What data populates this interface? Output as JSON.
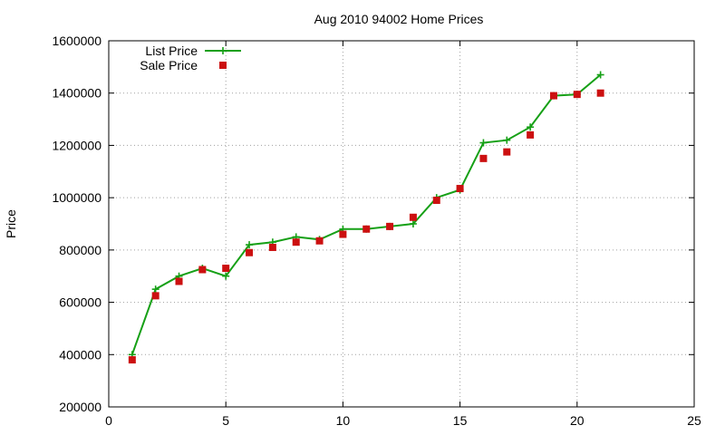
{
  "chart_data": {
    "type": "line",
    "title": "Aug 2010 94002 Home Prices",
    "xlabel": "",
    "ylabel": "Price",
    "xlim": [
      0,
      25
    ],
    "ylim": [
      200000,
      1600000
    ],
    "xticks": [
      0,
      5,
      10,
      15,
      20,
      25
    ],
    "yticks": [
      200000,
      400000,
      600000,
      800000,
      1000000,
      1200000,
      1400000,
      1600000
    ],
    "grid": true,
    "legend_position": "top-left",
    "series": [
      {
        "name": "List Price",
        "style": "line+cross",
        "color": "#16a016",
        "x": [
          1,
          2,
          3,
          4,
          5,
          6,
          7,
          8,
          9,
          10,
          11,
          12,
          13,
          14,
          15,
          16,
          17,
          18,
          19,
          20,
          21
        ],
        "y": [
          400000,
          650000,
          700000,
          730000,
          700000,
          820000,
          830000,
          850000,
          840000,
          880000,
          880000,
          890000,
          900000,
          1000000,
          1030000,
          1210000,
          1220000,
          1270000,
          1390000,
          1395000,
          1470000
        ]
      },
      {
        "name": "Sale Price",
        "style": "square",
        "color": "#cc1010",
        "x": [
          1,
          2,
          3,
          4,
          5,
          6,
          7,
          8,
          9,
          10,
          11,
          12,
          13,
          14,
          15,
          16,
          17,
          18,
          19,
          20,
          21
        ],
        "y": [
          380000,
          625000,
          680000,
          725000,
          730000,
          790000,
          810000,
          830000,
          835000,
          860000,
          880000,
          890000,
          925000,
          990000,
          1035000,
          1150000,
          1175000,
          1240000,
          1390000,
          1395000,
          1400000
        ]
      }
    ]
  }
}
